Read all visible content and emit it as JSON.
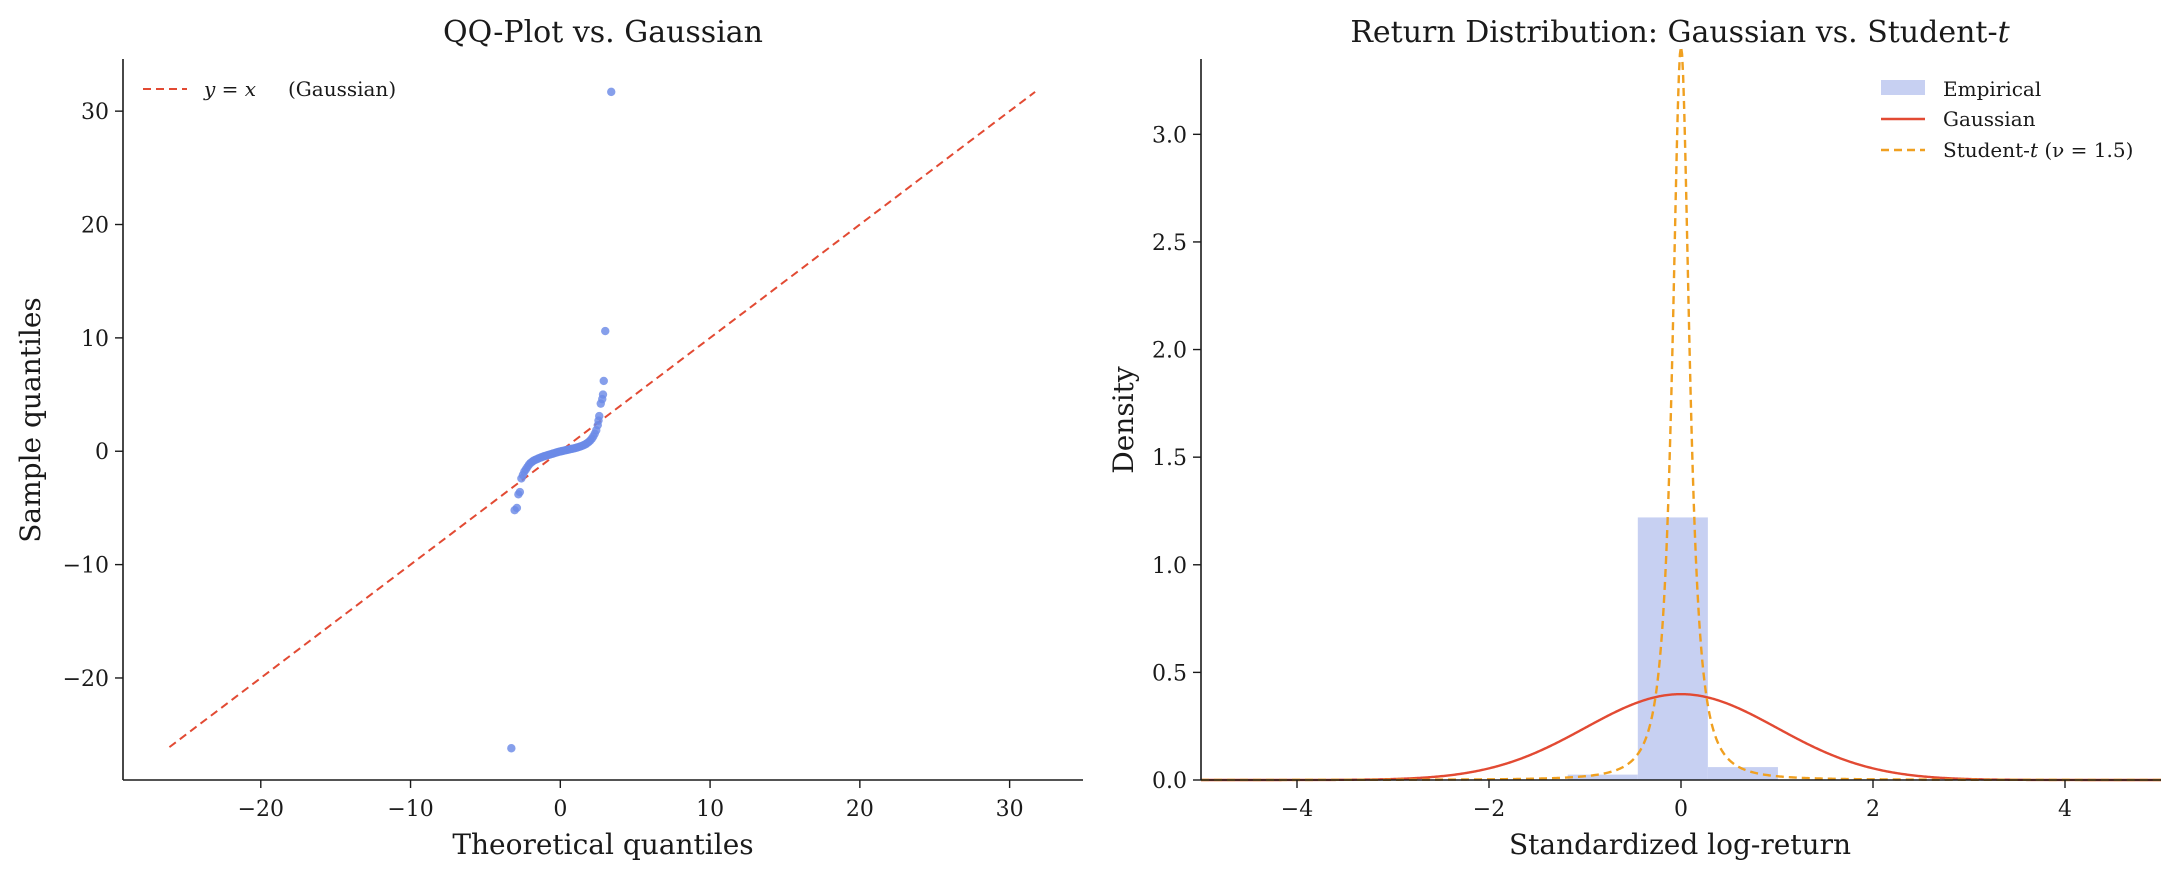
{
  "chart_data": [
    {
      "type": "scatter",
      "title": "QQ-Plot vs. Gaussian",
      "xlabel": "Theoretical quantiles",
      "ylabel": "Sample quantiles",
      "xlim": [
        -29.2,
        34.9
      ],
      "ylim": [
        -29.0,
        34.6
      ],
      "xticks": [
        -20,
        -10,
        0,
        10,
        20,
        30
      ],
      "yticks": [
        -20,
        -10,
        0,
        10,
        20,
        30
      ],
      "xtick_labels": [
        "−20",
        "−10",
        "0",
        "10",
        "20",
        "30"
      ],
      "ytick_labels": [
        "−20",
        "−10",
        "0",
        "10",
        "20",
        "30"
      ],
      "grid": false,
      "legend_position": "top-left",
      "reference_line": {
        "name": "y = x (Gaussian)",
        "legend_label": "(Gaussian)",
        "x": [
          -26.1,
          31.7
        ],
        "y": [
          -26.1,
          31.7
        ],
        "color": "#e24a33",
        "style": "dashed"
      },
      "points_color": "#6b8ae6",
      "points": [
        [
          -3.27,
          -26.2
        ],
        [
          -3.05,
          -5.2
        ],
        [
          -2.9,
          -5.0
        ],
        [
          -2.8,
          -3.8
        ],
        [
          -2.7,
          -3.6
        ],
        [
          -2.6,
          -2.4
        ],
        [
          -2.5,
          -2.1
        ],
        [
          -2.4,
          -1.8
        ],
        [
          -2.3,
          -1.6
        ],
        [
          -2.2,
          -1.4
        ],
        [
          -2.1,
          -1.2
        ],
        [
          -2.0,
          -1.05
        ],
        [
          -1.9,
          -0.95
        ],
        [
          -1.8,
          -0.85
        ],
        [
          -1.7,
          -0.78
        ],
        [
          -1.6,
          -0.72
        ],
        [
          -1.5,
          -0.66
        ],
        [
          -1.4,
          -0.6
        ],
        [
          -1.3,
          -0.55
        ],
        [
          -1.2,
          -0.5
        ],
        [
          -1.1,
          -0.45
        ],
        [
          -1.0,
          -0.41
        ],
        [
          -0.9,
          -0.37
        ],
        [
          -0.8,
          -0.33
        ],
        [
          -0.7,
          -0.29
        ],
        [
          -0.6,
          -0.25
        ],
        [
          -0.5,
          -0.21
        ],
        [
          -0.4,
          -0.17
        ],
        [
          -0.3,
          -0.13
        ],
        [
          -0.2,
          -0.09
        ],
        [
          -0.1,
          -0.05
        ],
        [
          0.0,
          -0.02
        ],
        [
          0.1,
          0.01
        ],
        [
          0.2,
          0.04
        ],
        [
          0.3,
          0.07
        ],
        [
          0.4,
          0.1
        ],
        [
          0.5,
          0.13
        ],
        [
          0.6,
          0.16
        ],
        [
          0.7,
          0.19
        ],
        [
          0.8,
          0.22
        ],
        [
          0.9,
          0.25
        ],
        [
          1.0,
          0.28
        ],
        [
          1.1,
          0.32
        ],
        [
          1.2,
          0.36
        ],
        [
          1.3,
          0.4
        ],
        [
          1.4,
          0.45
        ],
        [
          1.5,
          0.5
        ],
        [
          1.6,
          0.56
        ],
        [
          1.7,
          0.63
        ],
        [
          1.8,
          0.72
        ],
        [
          1.9,
          0.82
        ],
        [
          2.0,
          0.95
        ],
        [
          2.1,
          1.1
        ],
        [
          2.2,
          1.3
        ],
        [
          2.3,
          1.55
        ],
        [
          2.4,
          1.85
        ],
        [
          2.5,
          2.3
        ],
        [
          2.55,
          2.7
        ],
        [
          2.6,
          3.1
        ],
        [
          2.7,
          4.2
        ],
        [
          2.8,
          4.6
        ],
        [
          2.85,
          5.0
        ],
        [
          2.9,
          6.2
        ],
        [
          3.0,
          10.6
        ],
        [
          3.4,
          31.7
        ]
      ]
    },
    {
      "type": "histogram",
      "title": "Return Distribution: Gaussian vs. Student-t",
      "title_prefix": "Return Distribution: Gaussian vs. Student-",
      "title_italic": "t",
      "xlabel": "Standardized log-return",
      "ylabel": "Density",
      "xlim": [
        -5,
        5
      ],
      "ylim": [
        0,
        3.35
      ],
      "xticks": [
        -4,
        -2,
        0,
        2,
        4
      ],
      "yticks": [
        0,
        0.5,
        1.0,
        1.5,
        2.0,
        2.5,
        3.0
      ],
      "xtick_labels": [
        "−4",
        "−2",
        "0",
        "2",
        "4"
      ],
      "ytick_labels": [
        "0.0",
        "0.5",
        "1.0",
        "1.5",
        "2.0",
        "2.5",
        "3.0"
      ],
      "grid": false,
      "legend_position": "top-right",
      "histogram": {
        "name": "Empirical",
        "color": "#c7d0f2",
        "bins": [
          {
            "x0": -1.18,
            "x1": -0.45,
            "density": 0.025
          },
          {
            "x0": -0.45,
            "x1": 0.28,
            "density": 1.22
          },
          {
            "x0": 0.28,
            "x1": 1.01,
            "density": 0.06
          }
        ]
      },
      "series": [
        {
          "name": "Gaussian",
          "color": "#e24a33",
          "style": "solid",
          "mu": 0,
          "sigma": 1
        },
        {
          "name": "Student-t (ν = 1.5)",
          "legend_prefix": "Student-",
          "legend_italic": "t",
          "legend_suffix": "(ν = 1.5)",
          "color": "#f0a020",
          "style": "dashed",
          "nu": 1.5,
          "scale": 0.1
        }
      ]
    }
  ]
}
